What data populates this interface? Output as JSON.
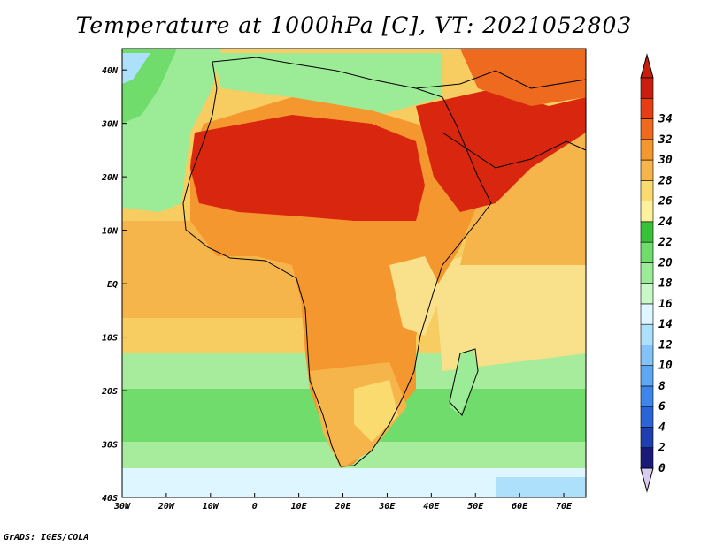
{
  "title": "Temperature at 1000hPa [C], VT: 2021052803",
  "footer": "GrADS: IGES/COLA",
  "map": {
    "lon_labels": [
      "30W",
      "20W",
      "10W",
      "0",
      "10E",
      "20E",
      "30E",
      "40E",
      "50E",
      "60E",
      "70E"
    ],
    "lat_labels": [
      "40N",
      "30N",
      "20N",
      "10N",
      "EQ",
      "10S",
      "20S",
      "30S",
      "40S"
    ],
    "lon_range": [
      -30,
      75
    ],
    "lat_range": [
      -40,
      44
    ]
  },
  "colorbar": {
    "labels": [
      "0",
      "2",
      "4",
      "6",
      "8",
      "10",
      "12",
      "14",
      "16",
      "18",
      "20",
      "22",
      "24",
      "26",
      "28",
      "30",
      "32",
      "34"
    ],
    "colors": [
      "#1a1a7a",
      "#1f3fb0",
      "#2a64d8",
      "#3e86ea",
      "#5ea7f2",
      "#84c2f7",
      "#ade0fb",
      "#ddf6ff",
      "#c8f7c8",
      "#9ceb97",
      "#6fdc6c",
      "#38c238",
      "#fff09e",
      "#fadb6f",
      "#f5b54a",
      "#f5972f",
      "#ee6a1e",
      "#e53d14",
      "#c81e0e"
    ],
    "extremes": {
      "low_color": "#d9ccf2",
      "high_color": "#c81e0e"
    }
  }
}
